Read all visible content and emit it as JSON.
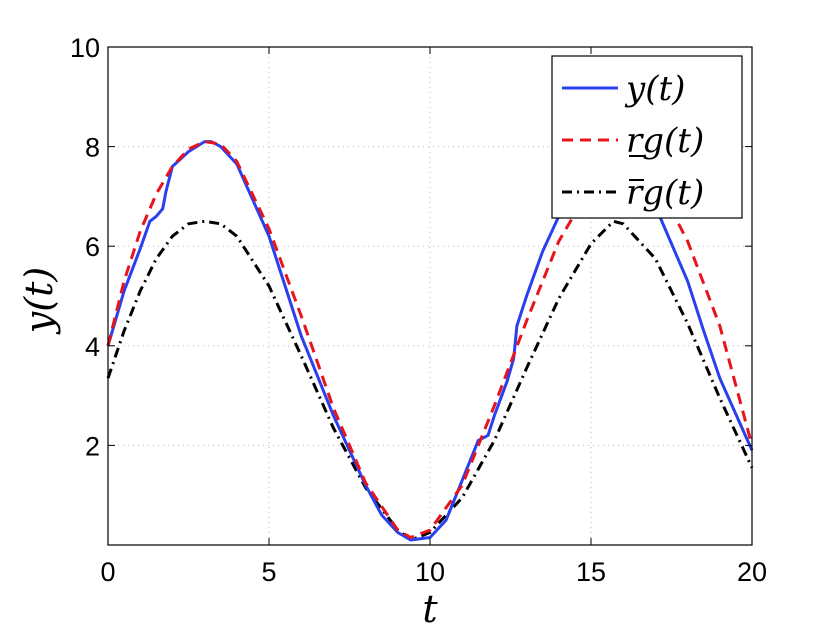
{
  "chart_data": {
    "type": "line",
    "xlabel": "t",
    "ylabel": "y(t)",
    "xlim": [
      0,
      20
    ],
    "ylim": [
      0,
      10
    ],
    "x_ticks": [
      0,
      5,
      10,
      15,
      20
    ],
    "x_tick_labels": [
      "0",
      "5",
      "10",
      "15",
      "20"
    ],
    "y_ticks": [
      2,
      4,
      6,
      8,
      10
    ],
    "y_tick_labels": [
      "2",
      "4",
      "6",
      "8",
      "10"
    ],
    "grid": true,
    "legend_position": "top-right",
    "series": [
      {
        "name": "y(t)",
        "color": "#2a3ff0",
        "style": "solid",
        "x": [
          0,
          0.5,
          1,
          1.3,
          1.5,
          1.7,
          1.8,
          2,
          2.5,
          3,
          3.2,
          3.5,
          4,
          5,
          5.5,
          6,
          7,
          8,
          8.5,
          9,
          9.4,
          10,
          10.5,
          11,
          11.5,
          11.8,
          12,
          12.4,
          12.6,
          12.7,
          13,
          13.5,
          14,
          16.5,
          17,
          18,
          18.5,
          19,
          20
        ],
        "y": [
          4.0,
          5.1,
          5.95,
          6.5,
          6.6,
          6.75,
          7.1,
          7.6,
          7.9,
          8.1,
          8.1,
          8.0,
          7.65,
          6.2,
          5.2,
          4.2,
          2.6,
          1.2,
          0.6,
          0.25,
          0.1,
          0.15,
          0.5,
          1.3,
          2.1,
          2.2,
          2.6,
          3.3,
          3.75,
          4.4,
          5.0,
          5.9,
          6.6,
          7.3,
          6.8,
          5.3,
          4.3,
          3.35,
          1.9
        ]
      },
      {
        "name": "rg(t)",
        "color": "#e8141c",
        "style": "dashed",
        "x": [
          0,
          0.5,
          1,
          1.5,
          2,
          2.5,
          3,
          3.5,
          4,
          5,
          6,
          7,
          8,
          9,
          9.4,
          10,
          11,
          12,
          13,
          14,
          15,
          16,
          17,
          18,
          19,
          20
        ],
        "y": [
          4.0,
          5.3,
          6.3,
          7.05,
          7.6,
          7.95,
          8.1,
          8.05,
          7.7,
          6.35,
          4.6,
          2.75,
          1.25,
          0.3,
          0.15,
          0.3,
          1.2,
          2.8,
          4.5,
          6.1,
          7.2,
          7.75,
          7.35,
          6.1,
          4.4,
          2.0
        ]
      },
      {
        "name": "rg(t)",
        "color": "#000000",
        "style": "dashdot",
        "x": [
          0,
          0.5,
          1,
          1.5,
          2,
          2.5,
          3,
          3.5,
          4,
          5,
          6,
          7,
          8,
          9,
          9.4,
          10,
          11,
          12,
          13,
          14,
          15,
          15.7,
          16,
          17,
          18,
          19,
          20
        ],
        "y": [
          3.35,
          4.3,
          5.1,
          5.75,
          6.2,
          6.45,
          6.5,
          6.45,
          6.2,
          5.2,
          3.8,
          2.35,
          1.15,
          0.3,
          0.1,
          0.25,
          0.95,
          2.1,
          3.55,
          4.95,
          6.05,
          6.5,
          6.45,
          5.75,
          4.45,
          2.95,
          1.55
        ]
      }
    ]
  }
}
